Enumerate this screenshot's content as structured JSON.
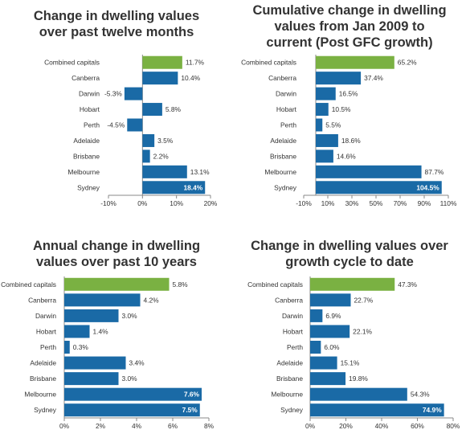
{
  "colors": {
    "bar": "#1a6aa6",
    "highlight": "#7ab142",
    "axis": "#888888",
    "text": "#333333"
  },
  "charts": [
    {
      "title_lines": [
        "Change in dwelling values",
        "over past twelve months"
      ]
    },
    {
      "title_lines": [
        "Cumulative change in dwelling",
        "values from Jan 2009 to",
        "current (Post GFC growth)"
      ]
    },
    {
      "title_lines": [
        "Annual change in dwelling",
        "values over past 10 years"
      ]
    },
    {
      "title_lines": [
        "Change in dwelling values over",
        "growth cycle to date"
      ]
    }
  ],
  "chart_data": [
    {
      "type": "bar",
      "orientation": "horizontal",
      "title": "Change in dwelling values over past twelve months",
      "categories": [
        "Combined capitals",
        "Canberra",
        "Darwin",
        "Hobart",
        "Perth",
        "Adelaide",
        "Brisbane",
        "Melbourne",
        "Sydney"
      ],
      "values": [
        11.7,
        10.4,
        -5.3,
        5.8,
        -4.5,
        3.5,
        2.2,
        13.1,
        18.4
      ],
      "labels": [
        "11.7%",
        "10.4%",
        "-5.3%",
        "5.8%",
        "-4.5%",
        "3.5%",
        "2.2%",
        "13.1%",
        "18.4%"
      ],
      "highlight_index": 0,
      "xlim": [
        -10,
        20
      ],
      "xticks": [
        -10,
        0,
        10,
        20
      ],
      "xtick_labels": [
        "-10%",
        "0%",
        "10%",
        "20%"
      ],
      "grid": false
    },
    {
      "type": "bar",
      "orientation": "horizontal",
      "title": "Cumulative change in dwelling values from Jan 2009 to current (Post GFC growth)",
      "categories": [
        "Combined capitals",
        "Canberra",
        "Darwin",
        "Hobart",
        "Perth",
        "Adelaide",
        "Brisbane",
        "Melbourne",
        "Sydney"
      ],
      "values": [
        65.2,
        37.4,
        16.5,
        10.5,
        5.5,
        18.6,
        14.6,
        87.7,
        104.5
      ],
      "labels": [
        "65.2%",
        "37.4%",
        "16.5%",
        "10.5%",
        "5.5%",
        "18.6%",
        "14.6%",
        "87.7%",
        "104.5%"
      ],
      "highlight_index": 0,
      "xlim": [
        -10,
        110
      ],
      "xticks": [
        -10,
        10,
        30,
        50,
        70,
        90,
        110
      ],
      "xtick_labels": [
        "-10%",
        "10%",
        "30%",
        "50%",
        "70%",
        "90%",
        "110%"
      ],
      "grid": false
    },
    {
      "type": "bar",
      "orientation": "horizontal",
      "title": "Annual change in dwelling values over past 10 years",
      "categories": [
        "Combined capitals",
        "Canberra",
        "Darwin",
        "Hobart",
        "Perth",
        "Adelaide",
        "Brisbane",
        "Melbourne",
        "Sydney"
      ],
      "values": [
        5.8,
        4.2,
        3.0,
        1.4,
        0.3,
        3.4,
        3.0,
        7.6,
        7.5
      ],
      "labels": [
        "5.8%",
        "4.2%",
        "3.0%",
        "1.4%",
        "0.3%",
        "3.4%",
        "3.0%",
        "7.6%",
        "7.5%"
      ],
      "highlight_index": 0,
      "xlim": [
        0,
        8
      ],
      "xticks": [
        0,
        2,
        4,
        6,
        8
      ],
      "xtick_labels": [
        "0%",
        "2%",
        "4%",
        "6%",
        "8%"
      ],
      "grid": false
    },
    {
      "type": "bar",
      "orientation": "horizontal",
      "title": "Change in dwelling values over growth cycle to date",
      "categories": [
        "Combined capitals",
        "Canberra",
        "Darwin",
        "Hobart",
        "Perth",
        "Adelaide",
        "Brisbane",
        "Melbourne",
        "Sydney"
      ],
      "values": [
        47.3,
        22.7,
        6.9,
        22.1,
        6.0,
        15.1,
        19.8,
        54.3,
        74.9
      ],
      "labels": [
        "47.3%",
        "22.7%",
        "6.9%",
        "22.1%",
        "6.0%",
        "15.1%",
        "19.8%",
        "54.3%",
        "74.9%"
      ],
      "highlight_index": 0,
      "xlim": [
        0,
        80
      ],
      "xticks": [
        0,
        20,
        40,
        60,
        80
      ],
      "xtick_labels": [
        "0%",
        "20%",
        "40%",
        "60%",
        "80%"
      ],
      "grid": false
    }
  ]
}
